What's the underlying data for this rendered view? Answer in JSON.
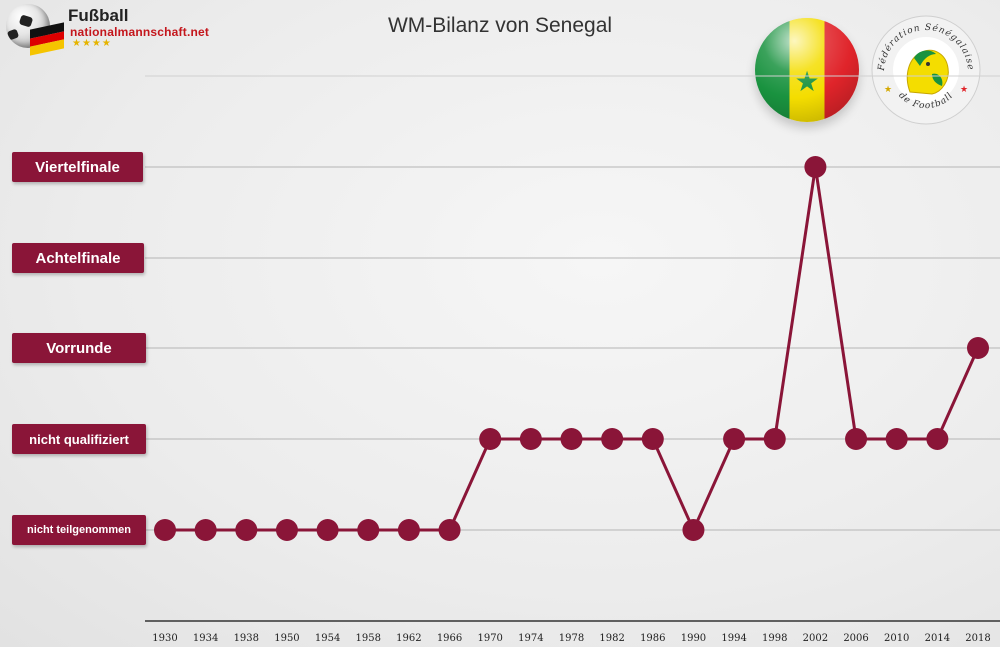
{
  "brand": {
    "title": "Fußball",
    "subtitle": "nationalmannschaft.net",
    "stars": "★★★★"
  },
  "flag_star": "★",
  "federation_logo": {
    "top_text": "Fédération Sénégalaise",
    "bottom_text": "de Football"
  },
  "colors": {
    "accent": "#8a1538",
    "grid": "#b5b5b5",
    "axis": "#333333",
    "senegal_green": "#19923f",
    "senegal_yellow": "#f4dd00",
    "senegal_red": "#e0242a"
  },
  "chart_data": {
    "type": "line",
    "title": "WM-Bilanz von Senegal",
    "xlabel": "",
    "ylabel": "",
    "grid": true,
    "levels": [
      "nicht teilgenommen",
      "nicht qualifiziert",
      "Vorrunde",
      "Achtelfinale",
      "Viertelfinale"
    ],
    "x": [
      "1930",
      "1934",
      "1938",
      "1950",
      "1954",
      "1958",
      "1962",
      "1966",
      "1970",
      "1974",
      "1978",
      "1982",
      "1986",
      "1990",
      "1994",
      "1998",
      "2002",
      "2006",
      "2010",
      "2014",
      "2018"
    ],
    "series": [
      {
        "values": [
          0,
          0,
          0,
          0,
          0,
          0,
          0,
          0,
          1,
          1,
          1,
          1,
          1,
          0,
          1,
          1,
          4,
          1,
          1,
          1,
          2
        ]
      }
    ]
  }
}
